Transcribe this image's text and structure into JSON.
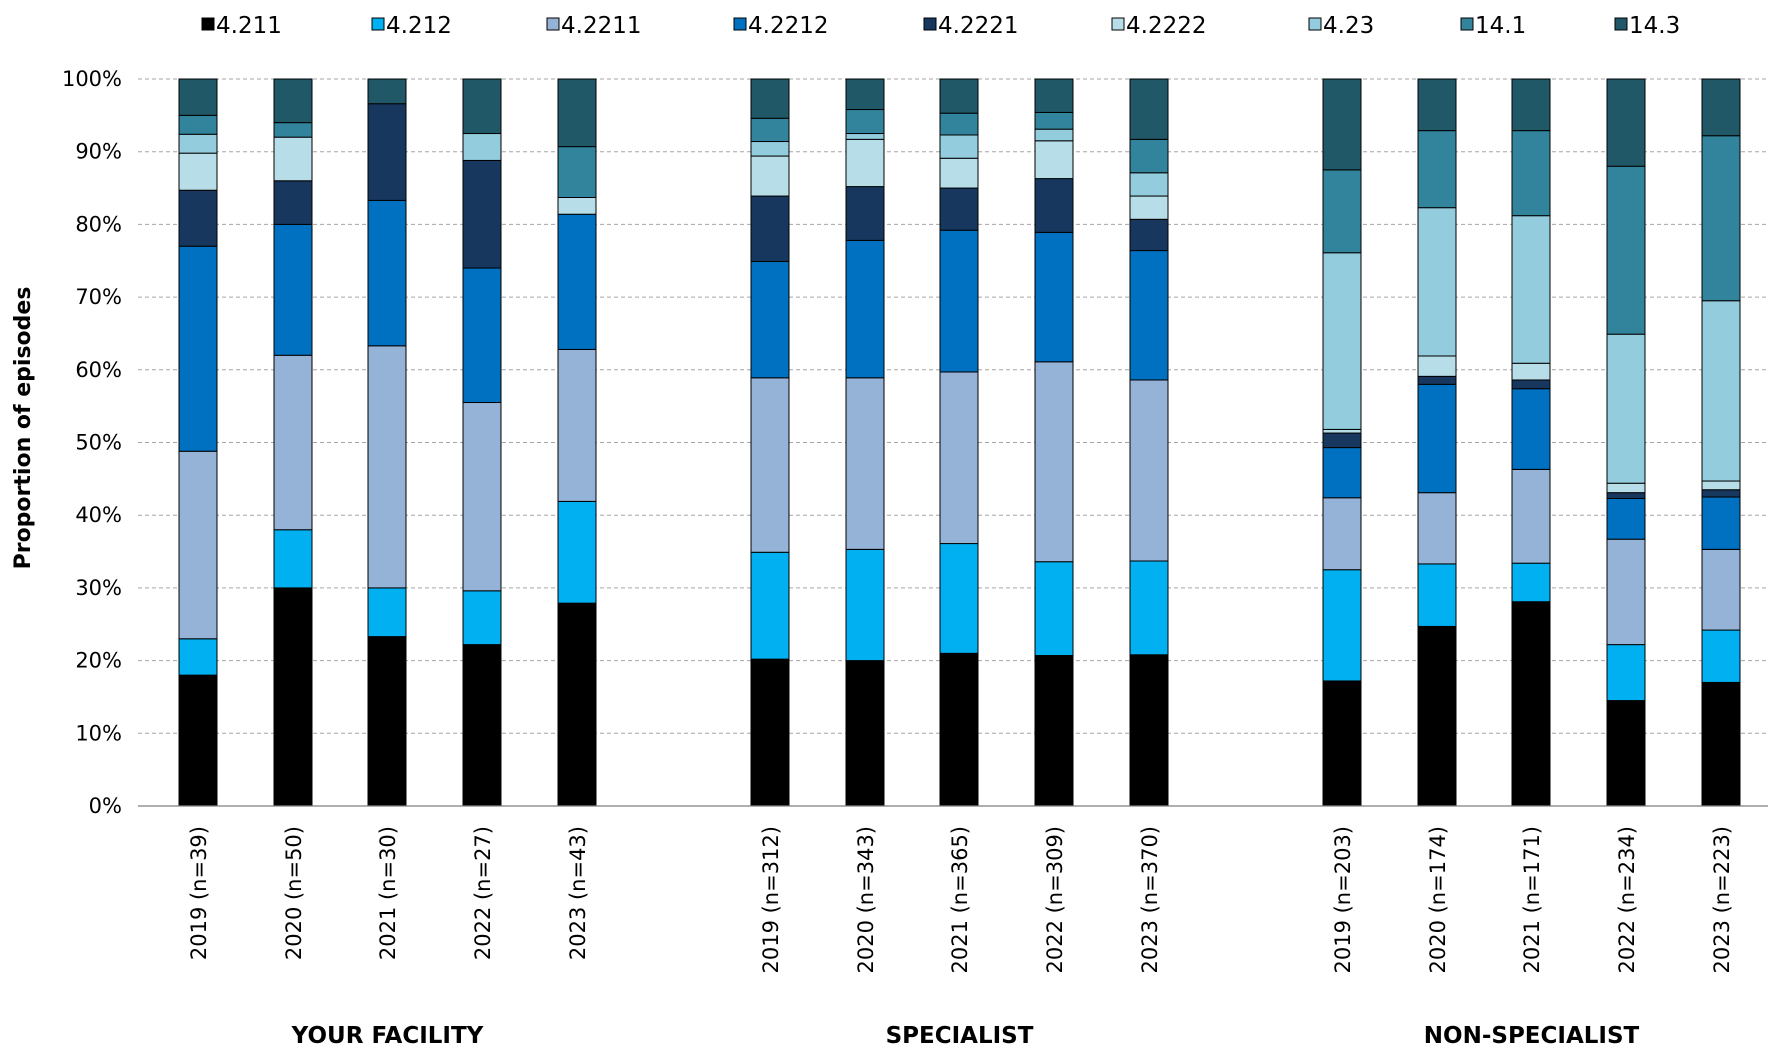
{
  "chart_data": {
    "type": "bar",
    "stacked": true,
    "ylabel": "Proportion of episodes",
    "ylim": [
      0,
      100
    ],
    "yticks": [
      "0%",
      "10%",
      "20%",
      "30%",
      "40%",
      "50%",
      "60%",
      "70%",
      "80%",
      "90%",
      "100%"
    ],
    "grid": true,
    "legend_position": "top",
    "series": [
      {
        "name": "4.211",
        "color": "#000000"
      },
      {
        "name": "4.212",
        "color": "#00b0f0"
      },
      {
        "name": "4.2211",
        "color": "#95b3d7"
      },
      {
        "name": "4.2212",
        "color": "#0070c0"
      },
      {
        "name": "4.2221",
        "color": "#17375e"
      },
      {
        "name": "4.2222",
        "color": "#b7dee8"
      },
      {
        "name": "4.23",
        "color": "#93cddd"
      },
      {
        "name": "14.1",
        "color": "#31849b"
      },
      {
        "name": "14.3",
        "color": "#215868"
      }
    ],
    "groups": [
      {
        "label": "YOUR FACILITY",
        "bars": [
          {
            "label": "2019 (n=39)",
            "values": [
              18.0,
              5.0,
              25.8,
              28.2,
              7.7,
              5.1,
              2.6,
              2.6,
              5.0
            ]
          },
          {
            "label": "2020 (n=50)",
            "values": [
              30.0,
              8.0,
              24.0,
              18.0,
              6.0,
              6.0,
              0,
              2.0,
              6.0
            ]
          },
          {
            "label": "2021 (n=30)",
            "values": [
              23.3,
              6.7,
              33.3,
              20.0,
              13.3,
              0,
              0,
              0,
              3.4
            ]
          },
          {
            "label": "2022 (n=27)",
            "values": [
              22.2,
              7.4,
              25.9,
              18.5,
              14.8,
              0,
              3.7,
              0,
              7.5
            ]
          },
          {
            "label": "2023 (n=43)",
            "values": [
              27.9,
              14.0,
              20.9,
              18.6,
              0,
              2.3,
              0,
              7.0,
              9.3
            ]
          }
        ]
      },
      {
        "label": "SPECIALIST",
        "bars": [
          {
            "label": "2019 (n=312)",
            "values": [
              20.2,
              14.7,
              24.0,
              16.0,
              9.0,
              5.5,
              2.0,
              3.2,
              5.4
            ]
          },
          {
            "label": "2020 (n=343)",
            "values": [
              20.0,
              15.3,
              23.6,
              18.9,
              7.4,
              6.5,
              0.8,
              3.3,
              4.2
            ]
          },
          {
            "label": "2021 (n=365)",
            "values": [
              21.0,
              15.1,
              23.6,
              19.5,
              5.8,
              4.1,
              3.2,
              3.0,
              4.7
            ]
          },
          {
            "label": "2022 (n=309)",
            "values": [
              20.7,
              12.9,
              27.5,
              17.8,
              7.4,
              5.2,
              1.6,
              2.3,
              4.6
            ]
          },
          {
            "label": "2023 (n=370)",
            "values": [
              20.8,
              12.9,
              24.9,
              17.8,
              4.3,
              3.2,
              3.2,
              4.6,
              8.3
            ]
          }
        ]
      },
      {
        "label": "NON-SPECIALIST",
        "bars": [
          {
            "label": "2019 (n=203)",
            "values": [
              17.2,
              15.3,
              9.9,
              6.9,
              2.0,
              0.5,
              24.3,
              11.4,
              12.5
            ]
          },
          {
            "label": "2020 (n=174)",
            "values": [
              24.7,
              8.6,
              9.8,
              14.9,
              1.1,
              2.8,
              20.4,
              10.6,
              7.1
            ]
          },
          {
            "label": "2021 (n=171)",
            "values": [
              28.1,
              5.3,
              12.9,
              11.1,
              1.2,
              2.3,
              20.3,
              11.7,
              7.1
            ]
          },
          {
            "label": "2022 (n=234)",
            "values": [
              14.5,
              7.7,
              14.5,
              5.6,
              0.8,
              1.3,
              20.5,
              23.1,
              12.0
            ]
          },
          {
            "label": "2023 (n=223)",
            "values": [
              17.0,
              7.2,
              11.1,
              7.2,
              1.0,
              1.2,
              24.8,
              22.7,
              7.8
            ]
          }
        ]
      }
    ]
  }
}
